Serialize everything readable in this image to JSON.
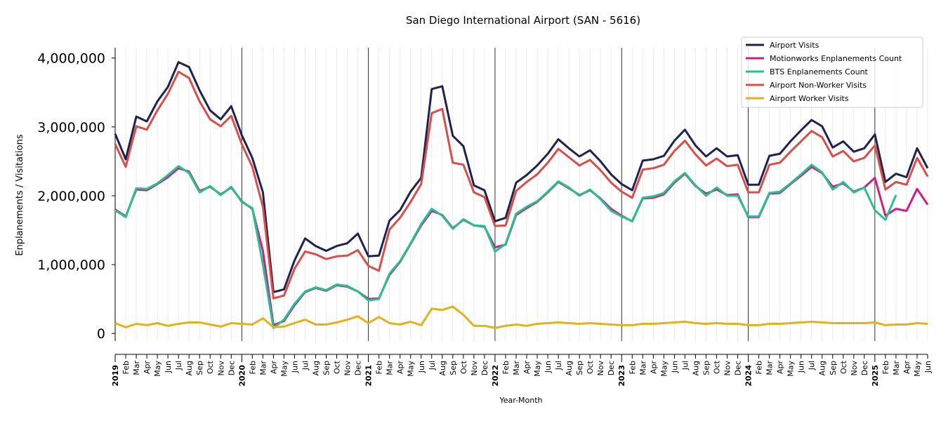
{
  "chart_data": {
    "type": "line",
    "title": "San Diego International Airport (SAN - 5616)",
    "xlabel": "Year-Month",
    "ylabel": "Enplanements / Visitations",
    "ylim": [
      -110000,
      4150000
    ],
    "yticks": [
      0,
      1000000,
      2000000,
      3000000,
      4000000
    ],
    "ytick_labels": [
      "0",
      "1,000,000",
      "2,000,000",
      "3,000,000",
      "4,000,000"
    ],
    "grid": "vertical minor lines monthly, major lines at each January",
    "legend_position": "top-right",
    "x": [
      "2019-01",
      "2019-02",
      "2019-03",
      "2019-04",
      "2019-05",
      "2019-06",
      "2019-07",
      "2019-08",
      "2019-09",
      "2019-10",
      "2019-11",
      "2019-12",
      "2020-01",
      "2020-02",
      "2020-03",
      "2020-04",
      "2020-05",
      "2020-06",
      "2020-07",
      "2020-08",
      "2020-09",
      "2020-10",
      "2020-11",
      "2020-12",
      "2021-01",
      "2021-02",
      "2021-03",
      "2021-04",
      "2021-05",
      "2021-06",
      "2021-07",
      "2021-08",
      "2021-09",
      "2021-10",
      "2021-11",
      "2021-12",
      "2022-01",
      "2022-02",
      "2022-03",
      "2022-04",
      "2022-05",
      "2022-06",
      "2022-07",
      "2022-08",
      "2022-09",
      "2022-10",
      "2022-11",
      "2022-12",
      "2023-01",
      "2023-02",
      "2023-03",
      "2023-04",
      "2023-05",
      "2023-06",
      "2023-07",
      "2023-08",
      "2023-09",
      "2023-10",
      "2023-11",
      "2023-12",
      "2024-01",
      "2024-02",
      "2024-03",
      "2024-04",
      "2024-05",
      "2024-06",
      "2024-07",
      "2024-08",
      "2024-09",
      "2024-10",
      "2024-11",
      "2024-12",
      "2025-01",
      "2025-02",
      "2025-03",
      "2025-04",
      "2025-05",
      "2025-06"
    ],
    "x_tick_labels": [
      "2019",
      "Feb",
      "Mar",
      "Apr",
      "May",
      "Jun",
      "Jul",
      "Aug",
      "Sep",
      "Oct",
      "Nov",
      "Dec",
      "2020",
      "Feb",
      "Mar",
      "Apr",
      "May",
      "Jun",
      "Jul",
      "Aug",
      "Sep",
      "Oct",
      "Nov",
      "Dec",
      "2021",
      "Feb",
      "Mar",
      "Apr",
      "May",
      "Jun",
      "Jul",
      "Aug",
      "Sep",
      "Oct",
      "Nov",
      "Dec",
      "2022",
      "Feb",
      "Mar",
      "Apr",
      "May",
      "Jun",
      "Jul",
      "Aug",
      "Sep",
      "Oct",
      "Nov",
      "Dec",
      "2023",
      "Feb",
      "Mar",
      "Apr",
      "May",
      "Jun",
      "Jul",
      "Aug",
      "Sep",
      "Oct",
      "Nov",
      "Dec",
      "2024",
      "Feb",
      "Mar",
      "Apr",
      "May",
      "Jun",
      "Jul",
      "Aug",
      "Sep",
      "Oct",
      "Nov",
      "Dec",
      "2025",
      "Feb",
      "Mar",
      "Apr",
      "May",
      "Jun"
    ],
    "series": [
      {
        "name": "Airport Visits",
        "color": "#1f2150",
        "values": [
          2900000,
          2530000,
          3150000,
          3080000,
          3370000,
          3580000,
          3940000,
          3870000,
          3530000,
          3240000,
          3110000,
          3300000,
          2880000,
          2550000,
          2050000,
          600000,
          640000,
          1060000,
          1380000,
          1270000,
          1200000,
          1270000,
          1310000,
          1450000,
          1120000,
          1130000,
          1640000,
          1790000,
          2060000,
          2260000,
          3550000,
          3590000,
          2870000,
          2720000,
          2150000,
          2080000,
          1630000,
          1680000,
          2190000,
          2300000,
          2440000,
          2610000,
          2820000,
          2690000,
          2570000,
          2660000,
          2500000,
          2310000,
          2170000,
          2080000,
          2510000,
          2530000,
          2580000,
          2800000,
          2960000,
          2730000,
          2570000,
          2690000,
          2570000,
          2590000,
          2160000,
          2160000,
          2580000,
          2610000,
          2790000,
          2950000,
          3100000,
          3010000,
          2700000,
          2790000,
          2640000,
          2690000,
          2890000,
          2200000,
          2320000,
          2270000,
          2690000,
          2400000
        ]
      },
      {
        "name": "Motionworks Enplanements Count",
        "color": "#cc1e87",
        "values": [
          1800000,
          1700000,
          2090000,
          2080000,
          2170000,
          2270000,
          2400000,
          2350000,
          2070000,
          2130000,
          2020000,
          2120000,
          1920000,
          1810000,
          1200000,
          120000,
          180000,
          410000,
          600000,
          660000,
          620000,
          700000,
          680000,
          610000,
          500000,
          510000,
          850000,
          1040000,
          1300000,
          1570000,
          1780000,
          1720000,
          1530000,
          1650000,
          1570000,
          1550000,
          1250000,
          1290000,
          1720000,
          1820000,
          1910000,
          2050000,
          2200000,
          2110000,
          2010000,
          2080000,
          1960000,
          1810000,
          1710000,
          1630000,
          1960000,
          1970000,
          2020000,
          2190000,
          2320000,
          2140000,
          2030000,
          2090000,
          2010000,
          2020000,
          1690000,
          1690000,
          2030000,
          2040000,
          2170000,
          2290000,
          2420000,
          2330000,
          2130000,
          2180000,
          2060000,
          2120000,
          2260000,
          1710000,
          1810000,
          1780000,
          2100000,
          1870000
        ]
      },
      {
        "name": "BTS Enplanements Count",
        "color": "#27c08f",
        "values": [
          1790000,
          1690000,
          2110000,
          2100000,
          2180000,
          2300000,
          2430000,
          2330000,
          2050000,
          2140000,
          2010000,
          2130000,
          1910000,
          1820000,
          1000000,
          80000,
          200000,
          430000,
          610000,
          670000,
          630000,
          710000,
          690000,
          610000,
          480000,
          500000,
          870000,
          1050000,
          1310000,
          1590000,
          1810000,
          1710000,
          1520000,
          1660000,
          1570000,
          1560000,
          1190000,
          1300000,
          1740000,
          1840000,
          1920000,
          2060000,
          2210000,
          2120000,
          2000000,
          2090000,
          1950000,
          1780000,
          1700000,
          1630000,
          1970000,
          1990000,
          2040000,
          2210000,
          2330000,
          2150000,
          2000000,
          2120000,
          2000000,
          2000000,
          1700000,
          1700000,
          2040000,
          2060000,
          2180000,
          2310000,
          2450000,
          2340000,
          2090000,
          2200000,
          2050000,
          2120000,
          1790000,
          1650000,
          2010000,
          null,
          null,
          null
        ]
      },
      {
        "name": "Airport Non-Worker Visits",
        "color": "#d94e48",
        "values": [
          2750000,
          2420000,
          3010000,
          2960000,
          3240000,
          3480000,
          3800000,
          3710000,
          3370000,
          3110000,
          3010000,
          3160000,
          2750000,
          2420000,
          1840000,
          510000,
          550000,
          940000,
          1190000,
          1150000,
          1080000,
          1120000,
          1130000,
          1210000,
          980000,
          910000,
          1510000,
          1680000,
          1910000,
          2170000,
          3200000,
          3260000,
          2480000,
          2450000,
          2050000,
          1980000,
          1560000,
          1570000,
          2070000,
          2200000,
          2310000,
          2480000,
          2680000,
          2560000,
          2440000,
          2520000,
          2370000,
          2190000,
          2060000,
          1970000,
          2380000,
          2400000,
          2450000,
          2650000,
          2800000,
          2600000,
          2440000,
          2540000,
          2430000,
          2450000,
          2050000,
          2050000,
          2450000,
          2480000,
          2640000,
          2790000,
          2940000,
          2850000,
          2570000,
          2650000,
          2500000,
          2550000,
          2730000,
          2090000,
          2200000,
          2160000,
          2550000,
          2280000
        ]
      },
      {
        "name": "Airport Worker Visits",
        "color": "#e2b21b",
        "values": [
          150000,
          90000,
          140000,
          120000,
          150000,
          110000,
          140000,
          160000,
          160000,
          130000,
          100000,
          150000,
          140000,
          130000,
          220000,
          90000,
          100000,
          150000,
          200000,
          130000,
          130000,
          160000,
          200000,
          250000,
          150000,
          240000,
          150000,
          130000,
          170000,
          120000,
          360000,
          340000,
          390000,
          270000,
          110000,
          110000,
          80000,
          110000,
          130000,
          110000,
          140000,
          150000,
          160000,
          150000,
          140000,
          150000,
          140000,
          130000,
          120000,
          120000,
          140000,
          140000,
          150000,
          160000,
          170000,
          150000,
          140000,
          150000,
          140000,
          140000,
          120000,
          120000,
          140000,
          140000,
          150000,
          160000,
          170000,
          160000,
          150000,
          150000,
          150000,
          150000,
          160000,
          120000,
          130000,
          130000,
          150000,
          140000
        ]
      }
    ]
  }
}
